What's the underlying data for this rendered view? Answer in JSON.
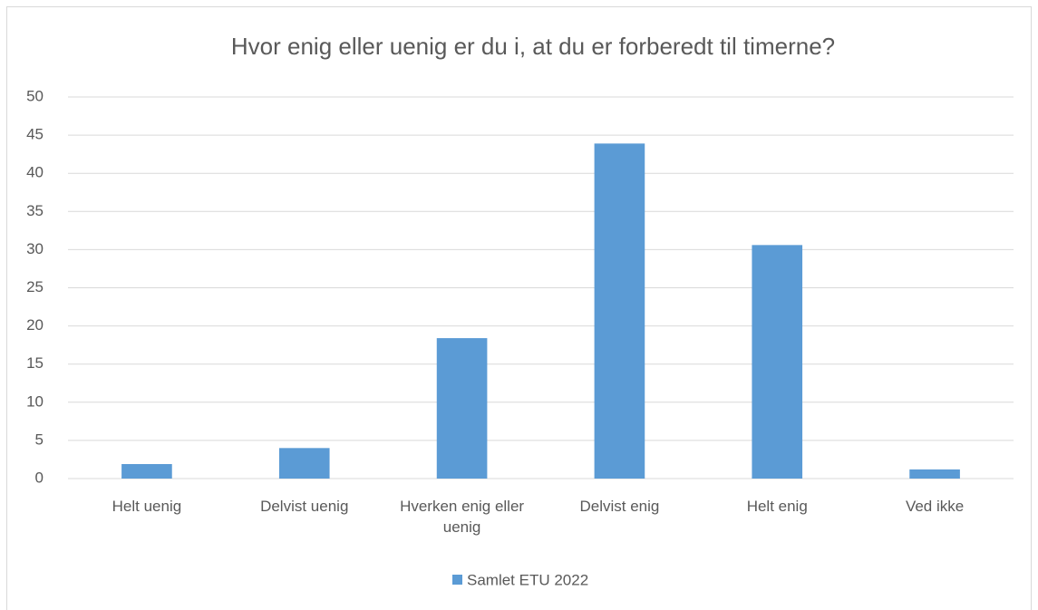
{
  "chart_data": {
    "type": "bar",
    "title": "Hvor enig eller uenig er du i, at du er forberedt til timerne?",
    "categories": [
      "Helt uenig",
      "Delvist uenig",
      "Hverken enig eller uenig",
      "Delvist enig",
      "Helt enig",
      "Ved ikke"
    ],
    "series": [
      {
        "name": "Samlet ETU 2022",
        "color": "#5b9bd5",
        "values": [
          1.9,
          4.0,
          18.4,
          43.9,
          30.6,
          1.2
        ]
      }
    ],
    "ylim": [
      0,
      50
    ],
    "yticks": [
      0,
      5,
      10,
      15,
      20,
      25,
      30,
      35,
      40,
      45,
      50
    ],
    "grid": true,
    "legend": "bottom"
  }
}
